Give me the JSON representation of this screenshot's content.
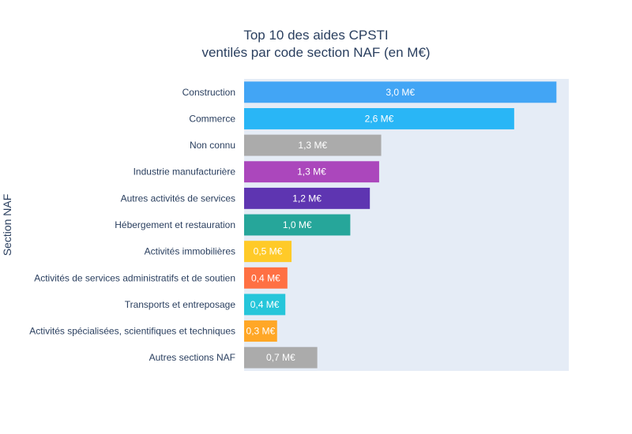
{
  "chart_data": {
    "type": "bar",
    "orientation": "horizontal",
    "title_lines": [
      "Top 10 des aides CPSTI",
      "ventilés par code section NAF (en M€)"
    ],
    "ylabel": "Section NAF",
    "xlabel": "",
    "xlim": [
      0,
      3.15
    ],
    "categories": [
      "Construction",
      "Commerce",
      "Non connu",
      "Industrie manufacturière",
      "Autres activités de services",
      "Hébergement et restauration",
      "Activités immobilières",
      "Activités de services administratifs et de soutien",
      "Transports et entreposage",
      "Activités spécialisées, scientifiques et techniques",
      "Autres sections NAF"
    ],
    "values": [
      3.03,
      2.62,
      1.33,
      1.31,
      1.22,
      1.03,
      0.46,
      0.42,
      0.4,
      0.32,
      0.71
    ],
    "value_labels": [
      "3,0 M€",
      "2,6 M€",
      "1,3 M€",
      "1,3 M€",
      "1,2 M€",
      "1,0 M€",
      "0,5 M€",
      "0,4 M€",
      "0,4 M€",
      "0,3 M€",
      "0,7 M€"
    ],
    "colors": [
      "#42A5F5",
      "#29B6F6",
      "#ABABAB",
      "#AB47BC",
      "#5E35B1",
      "#26A69A",
      "#FFCA28",
      "#FF7043",
      "#26C6DA",
      "#FFA726",
      "#ABABAB"
    ],
    "plot_background": "#E5ECF6",
    "grid": false,
    "legend": "none"
  }
}
